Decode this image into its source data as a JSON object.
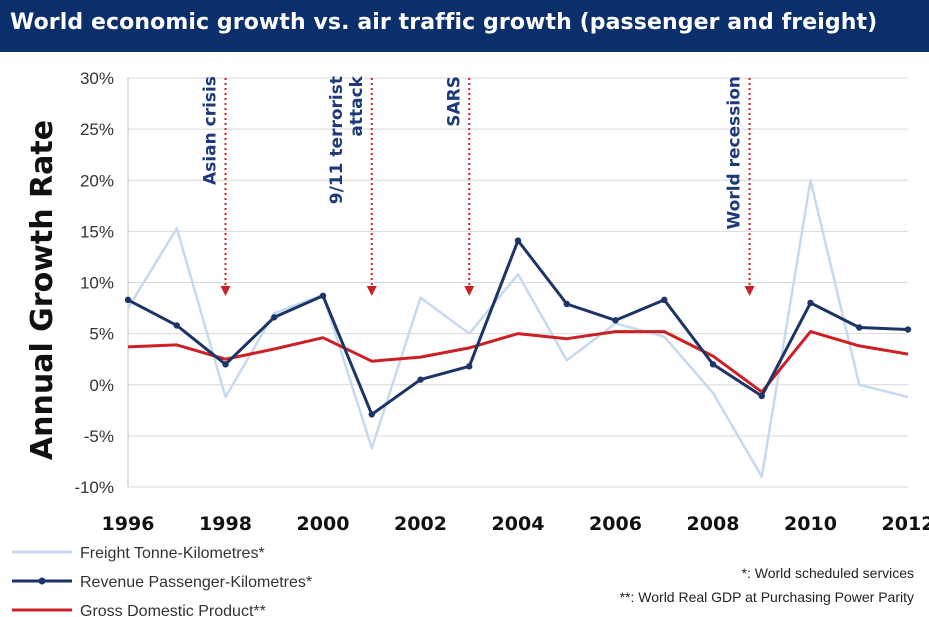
{
  "title": "World economic growth vs. air traffic growth (passenger and freight)",
  "chart_data": {
    "type": "line",
    "ylabel": "Annual Growth Rate",
    "xlabel": "",
    "x": [
      1996,
      1997,
      1998,
      1999,
      2000,
      2001,
      2002,
      2003,
      2004,
      2005,
      2006,
      2007,
      2008,
      2009,
      2010,
      2011,
      2012
    ],
    "xticks": [
      "1996",
      "1998",
      "2000",
      "2002",
      "2004",
      "2006",
      "2008",
      "2010",
      "2012"
    ],
    "xtick_values": [
      1996,
      1998,
      2000,
      2002,
      2004,
      2006,
      2008,
      2010,
      2012
    ],
    "ylim": [
      -10,
      30
    ],
    "yticks": [
      "-10%",
      "-5%",
      "0%",
      "5%",
      "10%",
      "15%",
      "20%",
      "25%",
      "30%"
    ],
    "ytick_values": [
      -10,
      -5,
      0,
      5,
      10,
      15,
      20,
      25,
      30
    ],
    "grid": "horizontal",
    "legend_position": "bottom-left",
    "series": [
      {
        "name": "Freight Tonne-Kilometres*",
        "color": "#c6d9ee",
        "marker": false,
        "values": [
          7.5,
          15.3,
          -1.2,
          7.0,
          8.8,
          -6.2,
          8.5,
          5.0,
          10.8,
          2.4,
          6.0,
          4.7,
          -0.8,
          -9.0,
          20.0,
          0.0,
          -1.2
        ]
      },
      {
        "name": "Revenue Passenger-Kilometres*",
        "color": "#1c3466",
        "marker": true,
        "values": [
          8.3,
          5.8,
          2.0,
          6.6,
          8.7,
          -2.9,
          0.5,
          1.8,
          14.1,
          7.9,
          6.3,
          8.3,
          2.0,
          -1.1,
          8.0,
          5.6,
          5.4
        ]
      },
      {
        "name": "Gross Domestic Product**",
        "color": "#cc2027",
        "marker": false,
        "values": [
          3.7,
          3.9,
          2.5,
          3.5,
          4.6,
          2.3,
          2.7,
          3.6,
          5.0,
          4.5,
          5.2,
          5.2,
          2.8,
          -0.7,
          5.2,
          3.8,
          3.0
        ]
      }
    ],
    "annotations": [
      {
        "lines": [
          "Asian crisis"
        ],
        "x": 1998
      },
      {
        "lines": [
          "9/11 terrorist",
          "attack"
        ],
        "x": 2001
      },
      {
        "lines": [
          "SARS"
        ],
        "x": 2003
      },
      {
        "lines": [
          "World recession"
        ],
        "x": 2008.75
      }
    ],
    "notes": [
      "*: World scheduled services",
      "**: World Real GDP at Purchasing Power Parity"
    ]
  }
}
